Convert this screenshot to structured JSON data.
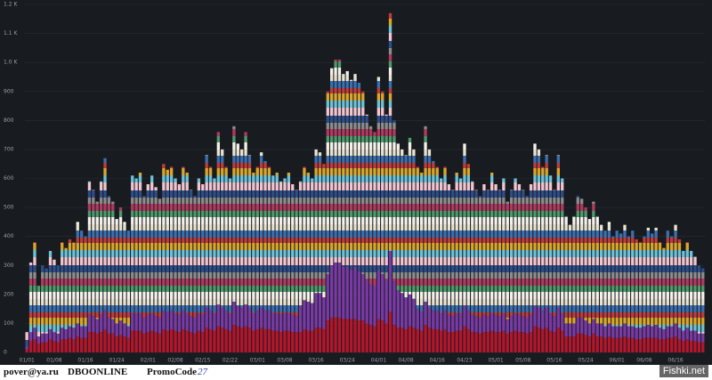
{
  "chart_data": {
    "type": "bar",
    "stacked": true,
    "categories": [
      "01/01",
      null,
      null,
      null,
      null,
      null,
      null,
      "01/08",
      null,
      null,
      null,
      null,
      null,
      null,
      null,
      "01/16",
      null,
      null,
      null,
      null,
      null,
      null,
      null,
      "01/24",
      null,
      null,
      null,
      null,
      null,
      null,
      null,
      "02/01",
      null,
      null,
      null,
      null,
      null,
      null,
      "02/08",
      null,
      null,
      null,
      null,
      null,
      null,
      "02/15",
      null,
      null,
      null,
      null,
      null,
      null,
      "02/22",
      null,
      null,
      null,
      null,
      null,
      null,
      "03/01",
      null,
      null,
      null,
      null,
      null,
      null,
      "03/08",
      null,
      null,
      null,
      null,
      null,
      null,
      null,
      "03/16",
      null,
      null,
      null,
      null,
      null,
      null,
      null,
      "03/24",
      null,
      null,
      null,
      null,
      null,
      null,
      null,
      "04/01",
      null,
      null,
      null,
      null,
      null,
      null,
      "04/08",
      null,
      null,
      null,
      null,
      null,
      null,
      null,
      "04/16",
      null,
      null,
      null,
      null,
      null,
      null,
      "04/23",
      null,
      null,
      null,
      null,
      null,
      null,
      null,
      "05/01",
      null,
      null,
      null,
      null,
      null,
      null,
      "05/08",
      null,
      null,
      null,
      null,
      null,
      null,
      null,
      "05/16",
      null,
      null,
      null,
      null,
      null,
      null,
      null,
      "05/24",
      null,
      null,
      null,
      null,
      null,
      null,
      null,
      "06/01",
      null,
      null,
      null,
      null,
      null,
      null,
      "06/08",
      null,
      null,
      null,
      null,
      null,
      null,
      null,
      "06/16",
      null,
      null,
      null,
      null,
      null,
      null,
      null
    ],
    "series": [
      {
        "color": "#b4162c",
        "values": [
          10,
          40,
          45,
          30,
          35,
          35,
          45,
          40,
          35,
          45,
          45,
          50,
          45,
          55,
          50,
          50,
          70,
          70,
          65,
          70,
          80,
          65,
          65,
          55,
          60,
          55,
          50,
          75,
          75,
          75,
          65,
          70,
          75,
          70,
          65,
          80,
          75,
          80,
          75,
          70,
          80,
          75,
          70,
          65,
          75,
          70,
          85,
          80,
          75,
          90,
          85,
          80,
          75,
          95,
          90,
          85,
          90,
          85,
          75,
          80,
          85,
          80,
          80,
          75,
          75,
          70,
          75,
          75,
          70,
          70,
          70,
          80,
          75,
          75,
          85,
          85,
          80,
          110,
          120,
          120,
          120,
          115,
          115,
          115,
          115,
          110,
          110,
          100,
          95,
          90,
          115,
          110,
          100,
          140,
          95,
          85,
          85,
          80,
          90,
          85,
          80,
          75,
          95,
          85,
          80,
          80,
          75,
          80,
          70,
          70,
          75,
          75,
          90,
          80,
          70,
          70,
          65,
          70,
          70,
          75,
          70,
          70,
          75,
          65,
          70,
          75,
          70,
          70,
          65,
          70,
          90,
          85,
          80,
          85,
          75,
          70,
          85,
          75,
          55,
          55,
          55,
          65,
          65,
          60,
          55,
          65,
          55,
          55,
          50,
          55,
          50,
          50,
          50,
          55,
          50,
          50,
          45,
          45,
          50,
          50,
          50,
          50,
          45,
          45,
          50,
          50,
          55,
          45,
          40,
          45,
          40,
          40,
          35,
          35
        ]
      },
      {
        "color": "#7a3aa6",
        "values": [
          10,
          30,
          40,
          25,
          30,
          30,
          35,
          30,
          30,
          40,
          35,
          40,
          40,
          45,
          40,
          40,
          60,
          55,
          50,
          60,
          65,
          55,
          50,
          45,
          50,
          45,
          40,
          60,
          60,
          60,
          55,
          60,
          60,
          55,
          55,
          65,
          65,
          65,
          60,
          60,
          65,
          60,
          55,
          55,
          60,
          60,
          70,
          65,
          60,
          75,
          70,
          65,
          60,
          80,
          70,
          70,
          75,
          70,
          60,
          65,
          70,
          65,
          65,
          60,
          60,
          60,
          60,
          60,
          60,
          55,
          90,
          100,
          100,
          95,
          120,
          120,
          110,
          160,
          180,
          190,
          190,
          180,
          180,
          170,
          180,
          170,
          160,
          150,
          140,
          140,
          170,
          160,
          150,
          210,
          150,
          130,
          120,
          110,
          110,
          100,
          70,
          65,
          80,
          70,
          65,
          65,
          60,
          65,
          60,
          55,
          60,
          60,
          70,
          65,
          60,
          55,
          55,
          60,
          55,
          60,
          60,
          55,
          60,
          50,
          55,
          60,
          60,
          55,
          55,
          60,
          70,
          70,
          65,
          70,
          60,
          55,
          70,
          60,
          45,
          45,
          45,
          55,
          55,
          50,
          45,
          50,
          45,
          45,
          40,
          45,
          40,
          40,
          40,
          45,
          40,
          40,
          40,
          40,
          40,
          45,
          40,
          45,
          40,
          35,
          40,
          40,
          45,
          40,
          35,
          40,
          35,
          35,
          30,
          30
        ]
      },
      {
        "values": [
          50,
          240,
          295,
          175,
          235,
          225,
          270,
          250,
          235,
          295,
          280,
          300,
          295,
          350,
          330,
          310,
          460,
          435,
          405,
          460,
          525,
          420,
          405,
          360,
          390,
          350,
          330,
          475,
          465,
          485,
          420,
          450,
          475,
          445,
          410,
          505,
          490,
          495,
          465,
          450,
          495,
          485,
          435,
          420,
          465,
          450,
          525,
          495,
          465,
          595,
          545,
          495,
          465,
          605,
          560,
          545,
          595,
          525,
          485,
          495,
          535,
          515,
          495,
          475,
          485,
          460,
          465,
          485,
          450,
          435,
          430,
          460,
          445,
          430,
          495,
          485,
          460,
          630,
          680,
          700,
          700,
          665,
          675,
          655,
          665,
          650,
          630,
          570,
          545,
          530,
          665,
          630,
          570,
          820,
          555,
          505,
          495,
          490,
          540,
          515,
          490,
          480,
          605,
          545,
          515,
          495,
          465,
          495,
          450,
          435,
          485,
          465,
          560,
          505,
          460,
          435,
          420,
          450,
          435,
          485,
          450,
          435,
          465,
          405,
          435,
          465,
          450,
          435,
          420,
          450,
          560,
          545,
          495,
          525,
          475,
          435,
          525,
          465,
          370,
          340,
          370,
          420,
          410,
          390,
          360,
          405,
          370,
          340,
          330,
          350,
          310,
          330,
          320,
          340,
          310,
          330,
          305,
          295,
          310,
          335,
          320,
          335,
          295,
          280,
          330,
          310,
          340,
          305,
          275,
          295,
          275,
          255,
          235,
          225
        ]
      }
    ],
    "ylim": [
      0,
      1200
    ],
    "yticks": [
      0,
      100,
      200,
      300,
      400,
      500,
      600,
      700,
      800,
      900,
      {
        "value": 1000,
        "label": "1.0 K"
      },
      {
        "value": 1100,
        "label": "1.1 K"
      },
      {
        "value": 1200,
        "label": "1.2 K"
      }
    ],
    "grid": true
  },
  "footer": {
    "email": "pover@ya.ru",
    "brand": "DBOONLINE",
    "promo_label": "PromoCode",
    "promo_value": "27",
    "watermark": "Fishki.net"
  }
}
